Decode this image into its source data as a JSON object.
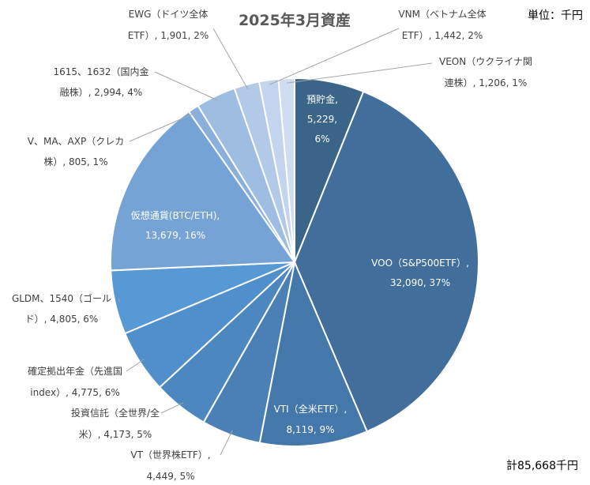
{
  "chart_data": {
    "type": "pie",
    "title": "2025年3月資産",
    "unit_label": "単位：千円",
    "total_label": "計85,668千円",
    "slices": [
      {
        "lines": [
          "預貯金,",
          "5,229,",
          "6%"
        ],
        "value": 5229,
        "percent": 6,
        "color": "#3b6489",
        "label_inside": true
      },
      {
        "lines": [
          "VOO（S&P500ETF）,",
          "32,090, 37%"
        ],
        "value": 32090,
        "percent": 37,
        "color": "#426e9c",
        "label_inside": true
      },
      {
        "lines": [
          "VTI（全米ETF）,",
          "8,119, 9%"
        ],
        "value": 8119,
        "percent": 9,
        "color": "#4477aa",
        "label_inside": true
      },
      {
        "lines": [
          "VT（世界株ETF）,",
          "4,449, 5%"
        ],
        "value": 4449,
        "percent": 5,
        "color": "#4a80b6",
        "label_inside": false
      },
      {
        "lines": [
          "投資信託（全世界/全",
          "米）, 4,173, 5%"
        ],
        "value": 4173,
        "percent": 5,
        "color": "#4d87c0",
        "label_inside": false
      },
      {
        "lines": [
          "確定拠出年金（先進国",
          "index）, 4,775, 6%"
        ],
        "value": 4775,
        "percent": 6,
        "color": "#508fcb",
        "label_inside": false
      },
      {
        "lines": [
          "GLDM、1540（ゴール",
          "ド）, 4,805, 6%"
        ],
        "value": 4805,
        "percent": 6,
        "color": "#5799d4",
        "label_inside": false
      },
      {
        "lines": [
          "仮想通貨(BTC/ETH),",
          "13,679, 16%"
        ],
        "value": 13679,
        "percent": 16,
        "color": "#75a3d6",
        "label_inside": true
      },
      {
        "lines": [
          "V、MA、AXP（クレカ",
          "株）, 805, 1%"
        ],
        "value": 805,
        "percent": 1,
        "color": "#8aafdc",
        "label_inside": false
      },
      {
        "lines": [
          "1615、1632（国内金",
          "融株）, 2,994, 4%"
        ],
        "value": 2994,
        "percent": 4,
        "color": "#9fbde2",
        "label_inside": false
      },
      {
        "lines": [
          "EWG（ドイツ全体",
          "ETF）, 1,901, 2%"
        ],
        "value": 1901,
        "percent": 2,
        "color": "#b2c9e8",
        "label_inside": false
      },
      {
        "lines": [
          "VNM（ベトナム全体",
          "ETF）, 1,442, 2%"
        ],
        "value": 1442,
        "percent": 2,
        "color": "#c2d4ee",
        "label_inside": false
      },
      {
        "lines": [
          "VEON（ウクライナ関",
          "連株）, 1,206, 1%"
        ],
        "value": 1206,
        "percent": 1,
        "color": "#cfdcf1",
        "label_inside": false
      }
    ]
  }
}
